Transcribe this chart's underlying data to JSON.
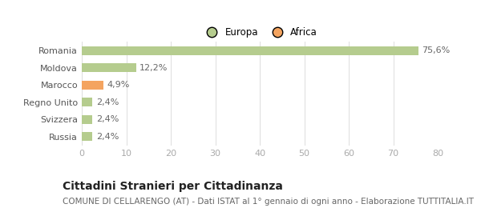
{
  "categories": [
    "Russia",
    "Svizzera",
    "Regno Unito",
    "Marocco",
    "Moldova",
    "Romania"
  ],
  "values": [
    2.4,
    2.4,
    2.4,
    4.9,
    12.2,
    75.6
  ],
  "labels": [
    "2,4%",
    "2,4%",
    "2,4%",
    "4,9%",
    "12,2%",
    "75,6%"
  ],
  "colors": [
    "#b5cc8e",
    "#b5cc8e",
    "#b5cc8e",
    "#f4a460",
    "#b5cc8e",
    "#b5cc8e"
  ],
  "legend_items": [
    {
      "label": "Europa",
      "color": "#b5cc8e"
    },
    {
      "label": "Africa",
      "color": "#f4a460"
    }
  ],
  "xlim": [
    0,
    80
  ],
  "xticks": [
    0,
    10,
    20,
    30,
    40,
    50,
    60,
    70,
    80
  ],
  "title": "Cittadini Stranieri per Cittadinanza",
  "subtitle": "COMUNE DI CELLARENGO (AT) - Dati ISTAT al 1° gennaio di ogni anno - Elaborazione TUTTITALIA.IT",
  "background_color": "#ffffff",
  "bar_height": 0.5,
  "label_fontsize": 8,
  "ytick_fontsize": 8,
  "xtick_fontsize": 8,
  "title_fontsize": 10,
  "subtitle_fontsize": 7.5
}
